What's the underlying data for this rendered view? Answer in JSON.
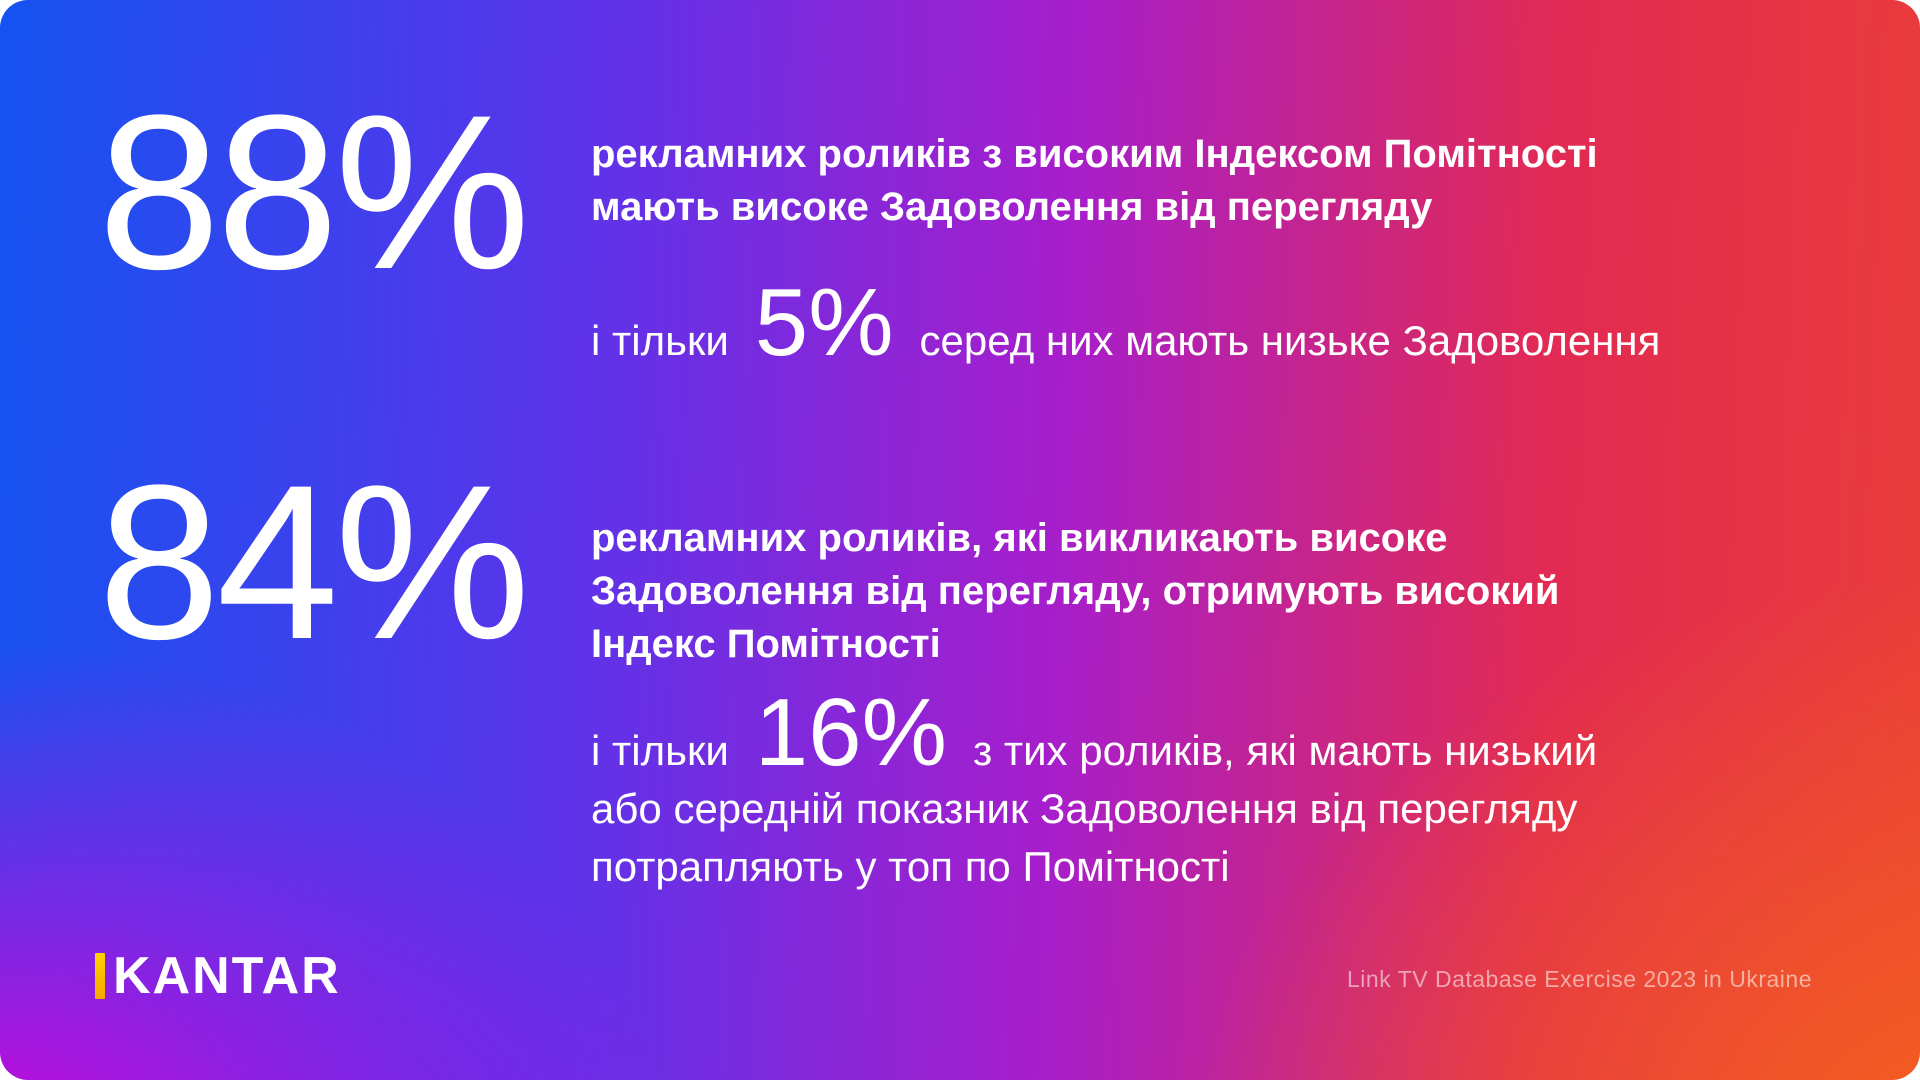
{
  "stats": [
    {
      "value": "88%",
      "headline": "рекламних роликів з високим Індексом Помітності\nмають високе Задоволення від перегляду",
      "detail_prefix": "і тільки",
      "detail_value": "5%",
      "detail_suffix": "серед них мають низьке Задоволення"
    },
    {
      "value": "84%",
      "headline": "рекламних роликів, які викликають високе\nЗадоволення від перегляду, отримують високий\nІндекс Помітності",
      "detail_prefix": "і тільки",
      "detail_value": "16%",
      "detail_suffix": "з тих роликів, які мають низький\nабо середній показник Задоволення від перегляду\nпотрапляють у топ по Помітності"
    }
  ],
  "footer": {
    "logo_text": "KANTAR",
    "source_note": "Link TV Database Exercise 2023 in Ukraine"
  },
  "colors": {
    "text": "#ffffff",
    "gradient_blue": "#1453f1",
    "gradient_purple": "#5c33ea",
    "gradient_magenta": "#db00d6",
    "gradient_red": "#e22a52",
    "gradient_orange": "#f4641c",
    "logo_accent_yellow": "#ffd200",
    "source_text": "rgba(255,255,255,0.55)"
  }
}
